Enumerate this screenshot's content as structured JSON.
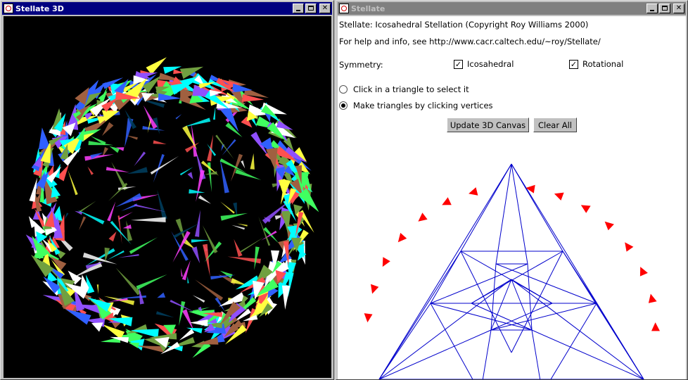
{
  "left_window": {
    "title": "Stellate 3D",
    "icon": "java-cup-icon",
    "controls": [
      "minimize-icon",
      "maximize-icon",
      "close-icon"
    ]
  },
  "right_window": {
    "title": "Stellate",
    "icon": "java-cup-icon",
    "controls": [
      "minimize-icon",
      "maximize-icon",
      "close-icon"
    ],
    "info_line": "Stellate: Icosahedral Stellation (Copyright Roy Williams 2000)",
    "help_line": "For help and info, see http://www.cacr.caltech.edu/~roy/Stellate/",
    "symmetry_label": "Symmetry:",
    "checkbox_icosahedral": {
      "label": "Icosahedral",
      "checked": true
    },
    "checkbox_rotational": {
      "label": "Rotational",
      "checked": true
    },
    "radio_select": {
      "label": "Click in a triangle to select it",
      "selected": false
    },
    "radio_make": {
      "label": "Make triangles by clicking vertices",
      "selected": true
    },
    "button_update": "Update 3D Canvas",
    "button_clear": "Clear All"
  },
  "colors": {
    "accent_red": "#ff0000",
    "diagram_blue": "#0000cc",
    "title_active": "#000080",
    "title_inactive": "#808080",
    "palette_3d": [
      "#00ffff",
      "#ffff40",
      "#ff5050",
      "#9050ff",
      "#40ff60",
      "#3060ff",
      "#a06040",
      "#70a040",
      "#ffffff",
      "#ff40ff",
      "#004060"
    ]
  }
}
